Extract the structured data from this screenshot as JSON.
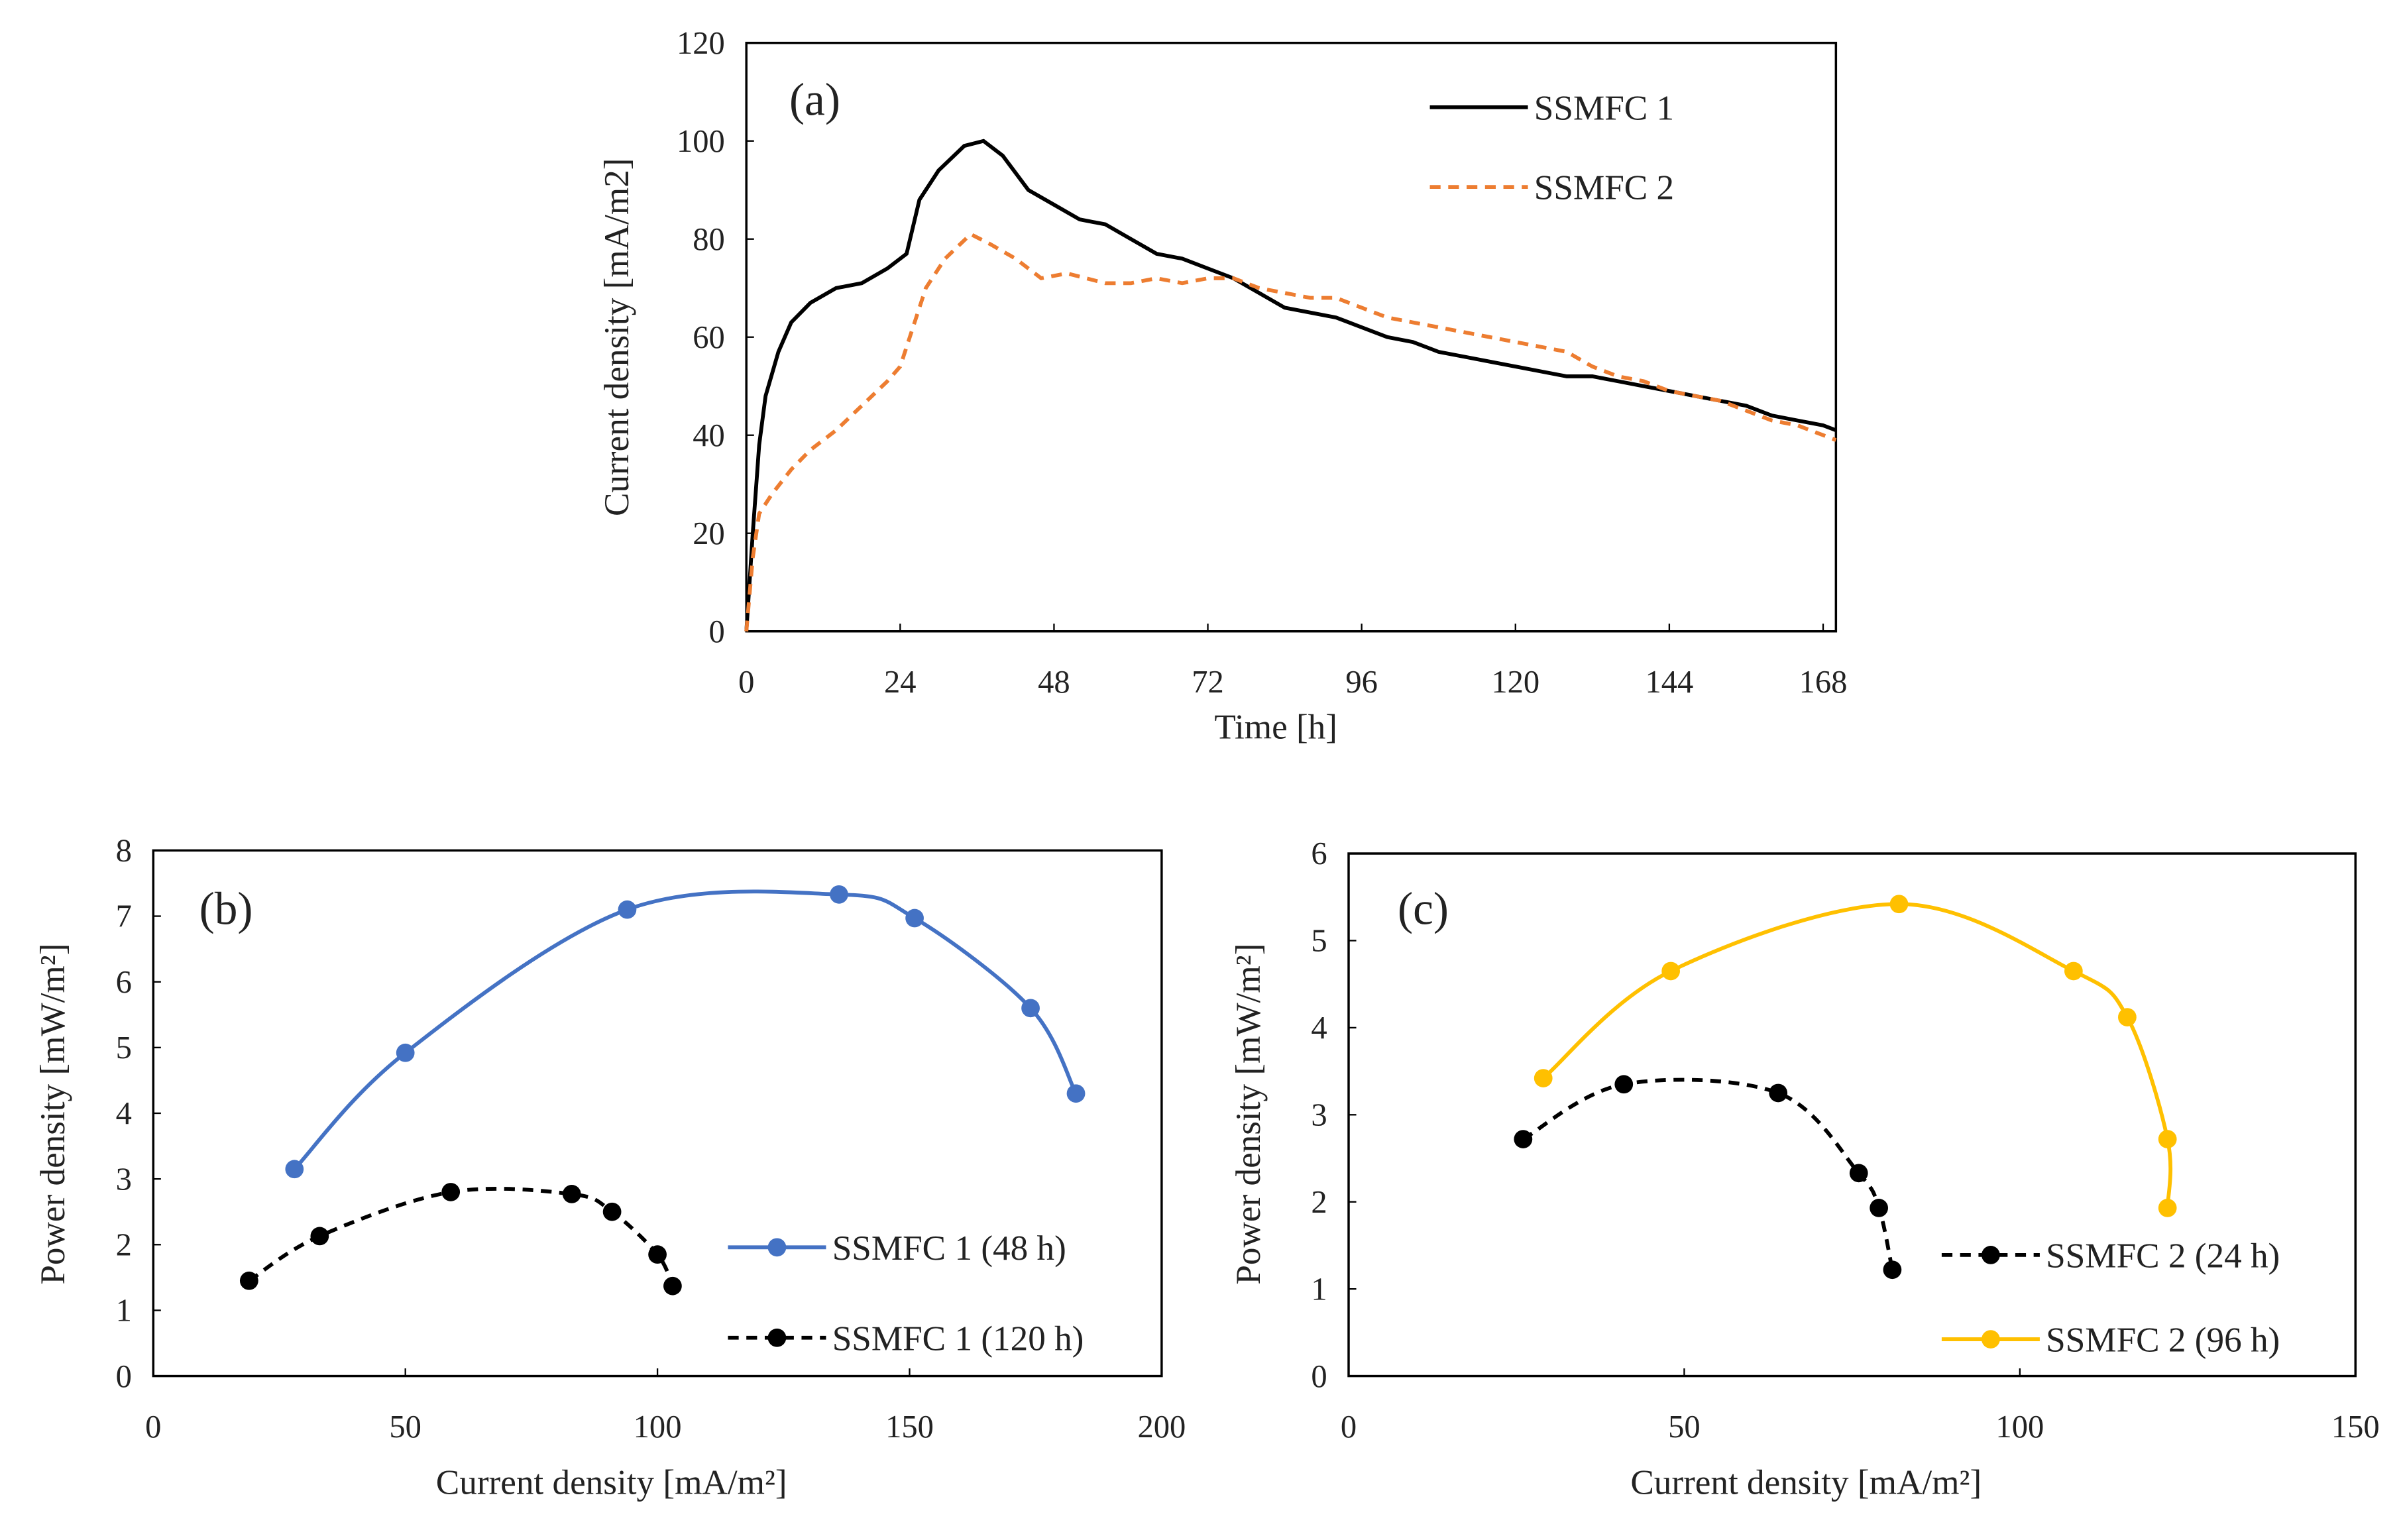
{
  "chart_data": [
    {
      "id": "a",
      "type": "line",
      "panel_label": "(a)",
      "xlabel": "Time [h]",
      "ylabel": "Current density [mA/m2]",
      "xlim": [
        0,
        170
      ],
      "ylim": [
        0,
        120
      ],
      "xticks": [
        0,
        24,
        48,
        72,
        96,
        120,
        144,
        168
      ],
      "yticks": [
        0,
        20,
        40,
        60,
        80,
        100,
        120
      ],
      "legend": "top-right",
      "grid": false,
      "series": [
        {
          "name": "SSMFC 1",
          "color": "#000000",
          "dash": "solid",
          "x": [
            0,
            1,
            2,
            3,
            5,
            7,
            10,
            14,
            18,
            22,
            25,
            27,
            30,
            34,
            37,
            40,
            44,
            48,
            52,
            56,
            60,
            64,
            68,
            72,
            76,
            80,
            84,
            88,
            92,
            96,
            100,
            104,
            108,
            112,
            116,
            120,
            124,
            128,
            132,
            136,
            140,
            144,
            148,
            152,
            156,
            160,
            164,
            168,
            170
          ],
          "y": [
            0,
            20,
            38,
            48,
            57,
            63,
            67,
            70,
            71,
            74,
            77,
            88,
            94,
            99,
            100,
            97,
            90,
            87,
            84,
            83,
            80,
            77,
            76,
            74,
            72,
            69,
            66,
            65,
            64,
            62,
            60,
            59,
            57,
            56,
            55,
            54,
            53,
            52,
            52,
            51,
            50,
            49,
            48,
            47,
            46,
            44,
            43,
            42,
            41
          ]
        },
        {
          "name": "SSMFC 2",
          "color": "#ED7D31",
          "dash": "dashed",
          "x": [
            0,
            1,
            2,
            4,
            7,
            10,
            14,
            18,
            22,
            24,
            26,
            28,
            31,
            35,
            38,
            42,
            46,
            50,
            56,
            60,
            64,
            68,
            72,
            76,
            80,
            84,
            88,
            92,
            96,
            100,
            104,
            108,
            112,
            116,
            120,
            124,
            128,
            132,
            136,
            140,
            144,
            148,
            152,
            156,
            160,
            164,
            168,
            170
          ],
          "y": [
            0,
            15,
            24,
            28,
            33,
            37,
            41,
            46,
            51,
            54,
            62,
            70,
            76,
            81,
            79,
            76,
            72,
            73,
            71,
            71,
            72,
            71,
            72,
            72,
            70,
            69,
            68,
            68,
            66,
            64,
            63,
            62,
            61,
            60,
            59,
            58,
            57,
            54,
            52,
            51,
            49,
            48,
            47,
            45,
            43,
            42,
            40,
            39
          ]
        }
      ]
    },
    {
      "id": "b",
      "type": "line",
      "panel_label": "(b)",
      "xlabel": "Current density [mA/m²]",
      "ylabel": "Power density [mW/m²]",
      "xlim": [
        0,
        200
      ],
      "ylim": [
        0,
        8
      ],
      "xticks": [
        0,
        50,
        100,
        150,
        200
      ],
      "yticks": [
        0,
        1,
        2,
        3,
        4,
        5,
        6,
        7,
        8
      ],
      "legend": "bottom-right",
      "grid": false,
      "series": [
        {
          "name": "SSMFC 1 (48 h)",
          "color": "#4472C4",
          "dash": "solid",
          "x": [
            28,
            50,
            94,
            136,
            151,
            174,
            183
          ],
          "y": [
            3.15,
            4.92,
            7.1,
            7.33,
            6.97,
            5.6,
            4.3
          ]
        },
        {
          "name": "SSMFC 1 (120 h)",
          "color": "#000000",
          "dash": "dashed",
          "x": [
            19,
            33,
            59,
            83,
            91,
            100,
            103
          ],
          "y": [
            1.45,
            2.13,
            2.8,
            2.77,
            2.5,
            1.85,
            1.37
          ]
        }
      ]
    },
    {
      "id": "c",
      "type": "line",
      "panel_label": "(c)",
      "xlabel": "Current density [mA/m²]",
      "ylabel": "Power density [mW/m²]",
      "xlim": [
        0,
        150
      ],
      "ylim": [
        0,
        6
      ],
      "xticks": [
        0,
        50,
        100,
        150
      ],
      "yticks": [
        0,
        1,
        2,
        3,
        4,
        5,
        6
      ],
      "legend": "bottom-right",
      "grid": false,
      "series": [
        {
          "name": "SSMFC 2 (24 h)",
          "color": "#000000",
          "dash": "dashed",
          "x": [
            26,
            41,
            64,
            76,
            79,
            81
          ],
          "y": [
            2.72,
            3.35,
            3.25,
            2.33,
            1.93,
            1.22
          ]
        },
        {
          "name": "SSMFC 2 (96 h)",
          "color": "#FFC000",
          "dash": "solid",
          "x": [
            29,
            48,
            82,
            108,
            116,
            122,
            122
          ],
          "y": [
            3.42,
            4.65,
            5.42,
            4.65,
            4.12,
            2.72,
            1.93
          ]
        }
      ]
    }
  ]
}
